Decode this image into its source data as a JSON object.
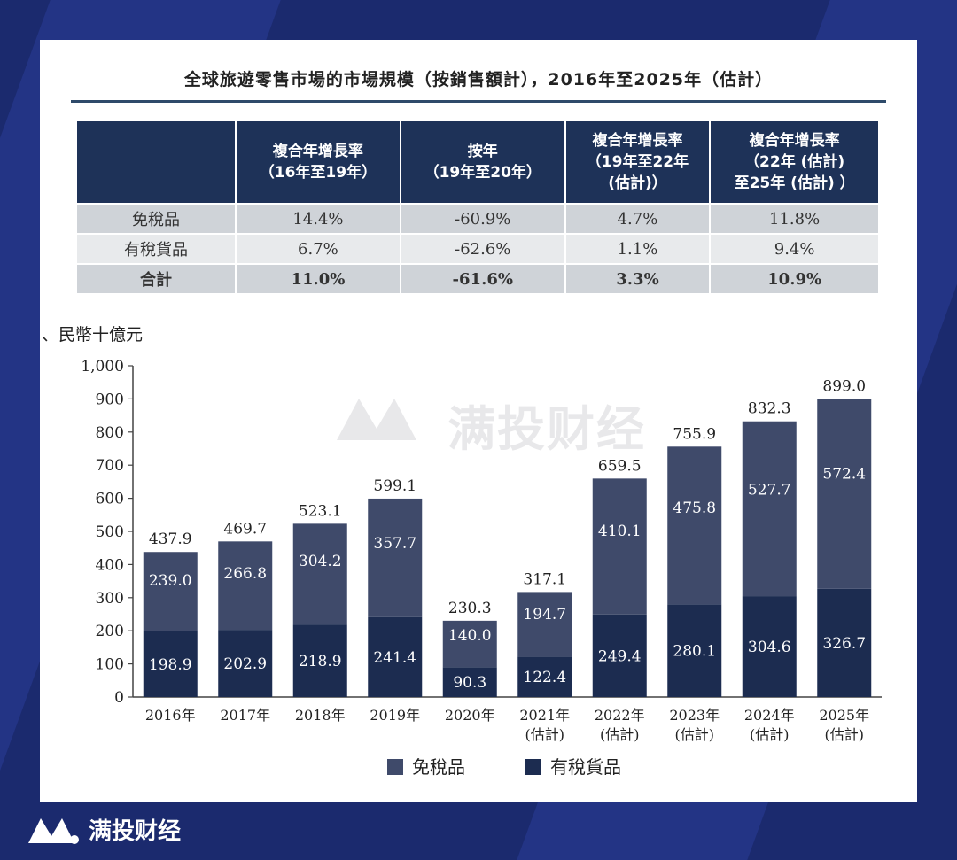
{
  "title": "全球旅遊零售市場的市場規模（按銷售額計），2016年至2025年（估計）",
  "cagr_table": {
    "headers": [
      "",
      "複合年增長率\n（16年至19年）",
      "按年\n（19年至20年）",
      "複合年增長率\n（19年至22年\n(估計)）",
      "複合年增長率\n（22年 (估計)\n至25年 (估計) ）"
    ],
    "rows": [
      {
        "label": "免稅品",
        "values": [
          "14.4%",
          "-60.9%",
          "4.7%",
          "11.8%"
        ]
      },
      {
        "label": "有稅貨品",
        "values": [
          "6.7%",
          "-62.6%",
          "1.1%",
          "9.4%"
        ]
      },
      {
        "label": "合計",
        "values": [
          "11.0%",
          "-61.6%",
          "3.3%",
          "10.9%"
        ]
      }
    ]
  },
  "unit_label": "、民幣十億元",
  "watermark_text": "满投财经",
  "footer_brand": "满投财经",
  "colors": {
    "duty_free": "#3f4a6a",
    "duty_paid": "#1c2c50",
    "header_bg": "#1e3258",
    "page_bg": "#1b2a6e"
  },
  "chart_data": {
    "type": "bar",
    "stacked": true,
    "categories": [
      [
        "2016年"
      ],
      [
        "2017年"
      ],
      [
        "2018年"
      ],
      [
        "2019年"
      ],
      [
        "2020年"
      ],
      [
        "2021年",
        "(估計)"
      ],
      [
        "2022年",
        "(估計)"
      ],
      [
        "2023年",
        "(估計)"
      ],
      [
        "2024年",
        "(估計)"
      ],
      [
        "2025年",
        "(估計)"
      ]
    ],
    "series": [
      {
        "name": "有稅貨品",
        "values": [
          198.9,
          202.9,
          218.9,
          241.4,
          90.3,
          122.4,
          249.4,
          280.1,
          304.6,
          326.7
        ]
      },
      {
        "name": "免稅品",
        "values": [
          239.0,
          266.8,
          304.2,
          357.7,
          140.0,
          194.7,
          410.1,
          475.8,
          527.7,
          572.4
        ]
      }
    ],
    "totals": [
      "437.9",
      "469.7",
      "523.1",
      "599.1",
      "230.3",
      "317.1",
      "659.5",
      "755.9",
      "832.3",
      "899.0"
    ],
    "y_ticks": [
      "0",
      "100",
      "200",
      "300",
      "400",
      "500",
      "600",
      "700",
      "800",
      "900",
      "1,000"
    ],
    "ylim": [
      0,
      1000
    ],
    "legend": [
      "免稅品",
      "有稅貨品"
    ],
    "legend_position": "bottom-center"
  }
}
